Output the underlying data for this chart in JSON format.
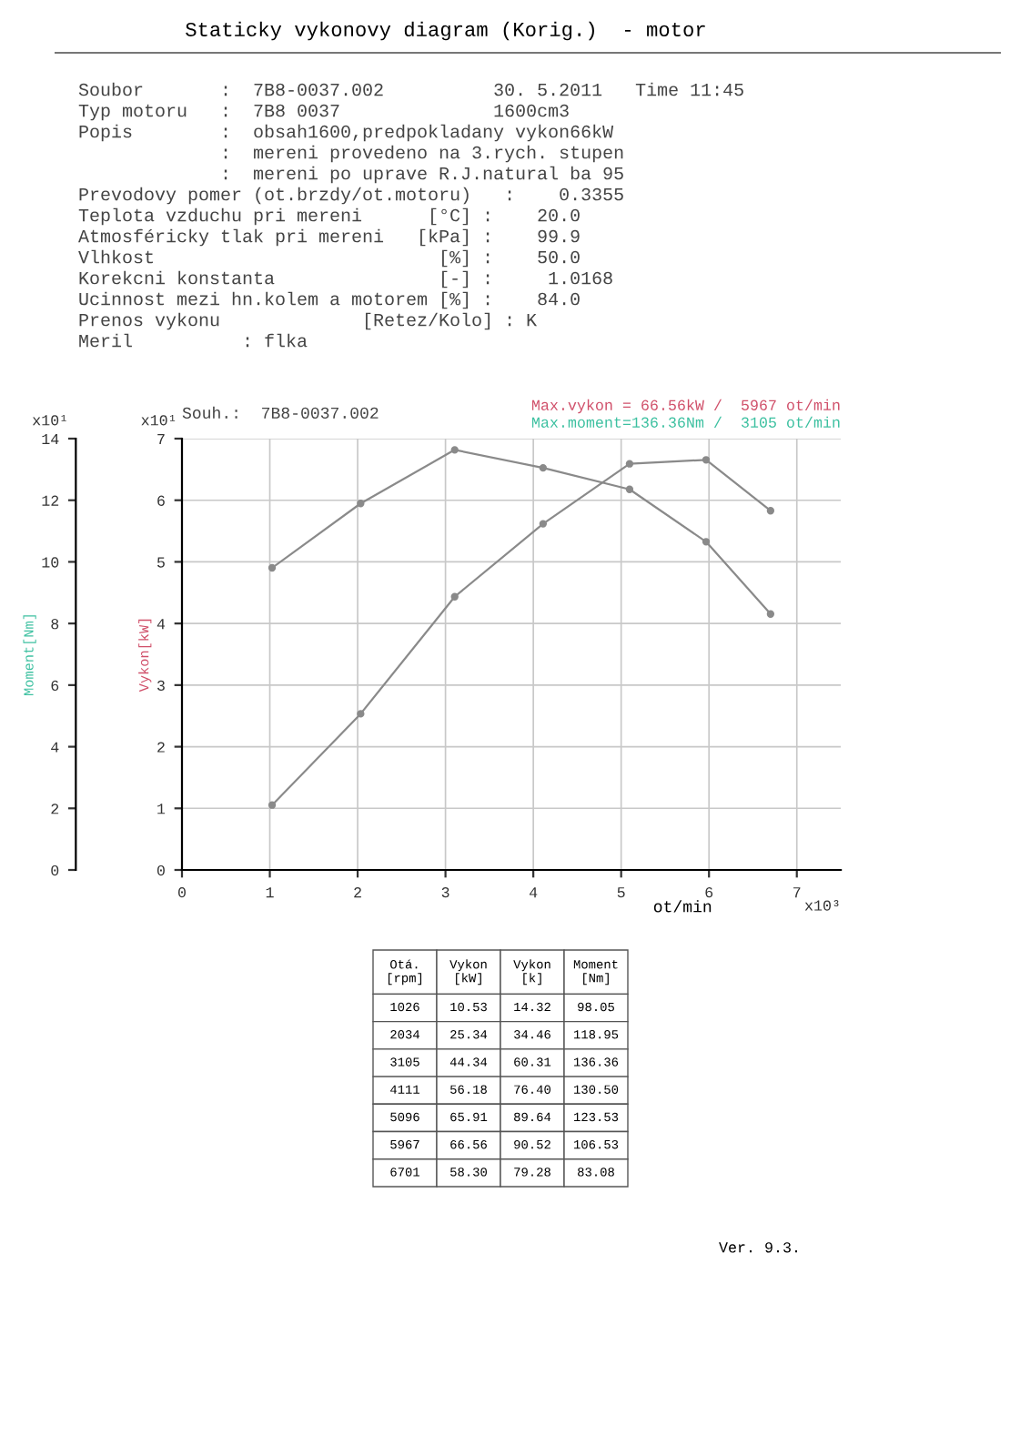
{
  "chart_data": [
    {
      "type": "other",
      "title": "Staticky vykonovy diagram (Korig.)  - motor",
      "annotations": [
        "Soubor       :  7B8-0037.002          30. 5.2011   Time 11:45",
        "Typ motoru   :  7B8 0037              1600cm3",
        "Popis        :  obsah1600,predpokladany vykon66kW",
        "             :  mereni provedeno na 3.rych. stupen",
        "             :  mereni po uprave R.J.natural ba 95",
        "Prevodovy pomer (ot.brzdy/ot.motoru)   :    0.3355",
        "Teplota vzduchu pri mereni      [°C] :    20.0",
        "Atmosféricky tlak pri mereni   [kPa] :    99.9",
        "Vlhkost                          [%] :    50.0",
        "Korekcni konstanta               [-] :     1.0168",
        "Ucinnost mezi hn.kolem a motorem [%] :    84.0",
        "Prenos vykonu             [Retez/Kolo] : K",
        "Meril          : flka"
      ]
    },
    {
      "type": "line",
      "title": "Souh.:  7B8-0037.002",
      "xlabel": "ot/min",
      "ylabel": "Vykon[kW]",
      "y2label": "Moment[Nm]",
      "x": [
        1.026,
        2.034,
        3.105,
        4.111,
        5.096,
        5.967,
        6.701
      ],
      "xlim": [
        0,
        7.5
      ],
      "xticks": [
        0,
        1,
        2,
        3,
        4,
        5,
        6,
        7
      ],
      "ylim": [
        0,
        7
      ],
      "yticks": [
        0,
        1,
        2,
        3,
        4,
        5,
        6,
        7
      ],
      "y2lim": [
        0,
        14
      ],
      "y2ticks": [
        0,
        2,
        4,
        6,
        8,
        10,
        12,
        14
      ],
      "series": [
        {
          "color": "#8a8a8a",
          "values": [
            1.053,
            2.534,
            4.434,
            5.618,
            6.591,
            6.656,
            5.83
          ]
        },
        {
          "color": "#8a8a8a",
          "axis": "y2",
          "values": [
            9.805,
            11.895,
            13.636,
            13.05,
            12.353,
            10.653,
            8.308
          ]
        }
      ],
      "marker": "circle",
      "grid": true,
      "annotations": [
        "Max.vykon = 66.56kW /  5967 ot/min",
        "Max.moment=136.36Nm /  3105 ot/min",
        "x10¹",
        "x10¹",
        "x10³"
      ]
    },
    {
      "type": "other",
      "categories": [
        "Otá.\n[rpm]",
        "Vykon\n[kW]",
        "Vykon\n[k]",
        "Moment\n[Nm]"
      ],
      "cell_labels": [
        [
          "1026",
          "10.53",
          "14.32",
          "98.05"
        ],
        [
          "2034",
          "25.34",
          "34.46",
          "118.95"
        ],
        [
          "3105",
          "44.34",
          "60.31",
          "136.36"
        ],
        [
          "4111",
          "56.18",
          "76.40",
          "130.50"
        ],
        [
          "5096",
          "65.91",
          "89.64",
          "123.53"
        ],
        [
          "5967",
          "66.56",
          "90.52",
          "106.53"
        ],
        [
          "6701",
          "58.30",
          "79.28",
          "83.08"
        ]
      ],
      "annotations": [
        "Ver. 9.3."
      ]
    }
  ]
}
